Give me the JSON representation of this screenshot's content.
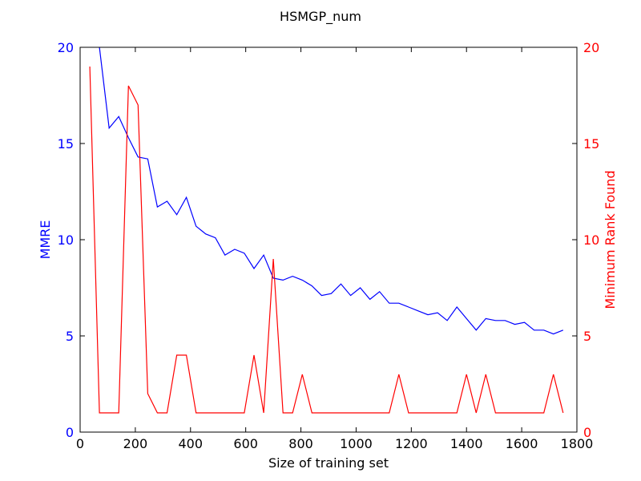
{
  "chart_data": {
    "type": "line",
    "title": "HSMGP_num",
    "xlabel": "Size of training set",
    "ylabel_left": "MMRE",
    "ylabel_right": "Minimum Rank Found",
    "xlim": [
      0,
      1800
    ],
    "ylim_left": [
      0,
      20
    ],
    "ylim_right": [
      0,
      20
    ],
    "xticks": [
      0,
      200,
      400,
      600,
      800,
      1000,
      1200,
      1400,
      1600,
      1800
    ],
    "yticks_left": [
      0,
      5,
      10,
      15,
      20
    ],
    "yticks_right": [
      0,
      5,
      10,
      15,
      20
    ],
    "grid": false,
    "legend": "none",
    "colors": {
      "left_axis": "#0000ff",
      "right_axis": "#ff0000",
      "frame": "#000000"
    },
    "series": [
      {
        "axis": "left",
        "color": "#0000ff",
        "x": [
          35,
          70,
          105,
          140,
          175,
          210,
          245,
          280,
          315,
          350,
          385,
          420,
          455,
          490,
          525,
          560,
          595,
          630,
          665,
          700,
          735,
          770,
          805,
          840,
          875,
          910,
          945,
          980,
          1015,
          1050,
          1085,
          1120,
          1155,
          1190,
          1225,
          1260,
          1295,
          1330,
          1365,
          1400,
          1435,
          1470,
          1505,
          1540,
          1575,
          1610,
          1645,
          1680,
          1715,
          1750
        ],
        "values": [
          24.0,
          20.0,
          15.8,
          16.4,
          15.3,
          14.3,
          14.2,
          11.7,
          12.0,
          11.3,
          12.2,
          10.7,
          10.3,
          10.1,
          9.2,
          9.5,
          9.3,
          8.5,
          9.2,
          8.0,
          7.9,
          8.1,
          7.9,
          7.6,
          7.1,
          7.2,
          7.7,
          7.1,
          7.5,
          6.9,
          7.3,
          6.7,
          6.7,
          6.5,
          6.3,
          6.1,
          6.2,
          5.8,
          6.5,
          5.9,
          5.3,
          5.9,
          5.8,
          5.8,
          5.6,
          5.7,
          5.3,
          5.3,
          5.1,
          5.3
        ]
      },
      {
        "axis": "right",
        "color": "#ff0000",
        "x": [
          35,
          70,
          105,
          140,
          175,
          210,
          245,
          280,
          315,
          350,
          385,
          420,
          455,
          490,
          525,
          560,
          595,
          630,
          665,
          700,
          735,
          770,
          805,
          840,
          875,
          910,
          945,
          980,
          1015,
          1050,
          1085,
          1120,
          1155,
          1190,
          1225,
          1260,
          1295,
          1330,
          1365,
          1400,
          1435,
          1470,
          1505,
          1540,
          1575,
          1610,
          1645,
          1680,
          1715,
          1750
        ],
        "values": [
          19,
          1,
          1,
          1,
          18,
          17,
          2,
          1,
          1,
          4,
          4,
          1,
          1,
          1,
          1,
          1,
          1,
          4,
          1,
          9,
          1,
          1,
          3,
          1,
          1,
          1,
          1,
          1,
          1,
          1,
          1,
          1,
          3,
          1,
          1,
          1,
          1,
          1,
          1,
          3,
          1,
          3,
          1,
          1,
          1,
          1,
          1,
          1,
          3,
          1
        ]
      }
    ]
  }
}
